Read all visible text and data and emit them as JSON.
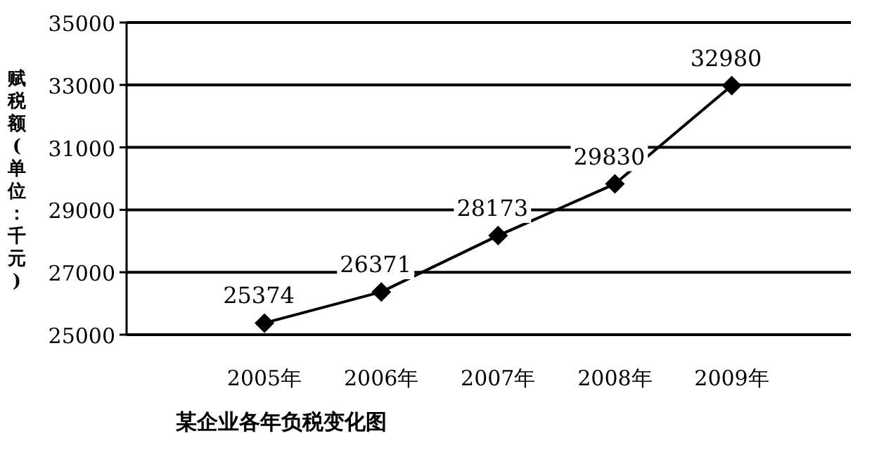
{
  "chart_data": {
    "type": "line",
    "title": "某企业各年负税变化图",
    "ylabel": "赋税额(单位：千元)",
    "categories": [
      "2005年",
      "2006年",
      "2007年",
      "2008年",
      "2009年"
    ],
    "values": [
      25374,
      26371,
      28173,
      29830,
      32980
    ],
    "color": "#000000",
    "ylim": [
      25000,
      35000
    ],
    "yticks": [
      25000,
      27000,
      29000,
      31000,
      33000,
      35000
    ],
    "grid": "y",
    "marker": "diamond",
    "line_style": "solid",
    "data_labels": true
  }
}
